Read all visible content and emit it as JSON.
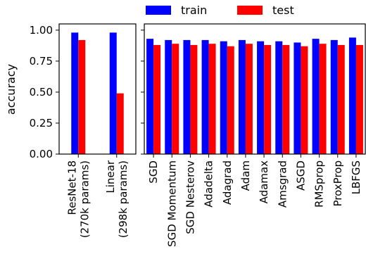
{
  "chart_data": {
    "type": "bar",
    "ylabel": "accuracy",
    "ylim": [
      0,
      1.05
    ],
    "yticks": [
      "0.00",
      "0.25",
      "0.50",
      "0.75",
      "1.00"
    ],
    "legend_position": "top-center",
    "grid": false,
    "colors": {
      "train": "#0000ff",
      "test": "#ff0000"
    },
    "series_names": [
      "train",
      "test"
    ],
    "panels": [
      {
        "categories": [
          [
            "ResNet-18",
            "(270k params)"
          ],
          [
            "Linear",
            "(298k params)"
          ]
        ],
        "series": [
          {
            "name": "train",
            "values": [
              0.98,
              0.98
            ]
          },
          {
            "name": "test",
            "values": [
              0.92,
              0.49
            ]
          }
        ]
      },
      {
        "categories": [
          [
            "SGD"
          ],
          [
            "SGD Momentum"
          ],
          [
            "SGD Nesterov"
          ],
          [
            "Adadelta"
          ],
          [
            "Adagrad"
          ],
          [
            "Adam"
          ],
          [
            "Adamax"
          ],
          [
            "Amsgrad"
          ],
          [
            "ASGD"
          ],
          [
            "RMSprop"
          ],
          [
            "ProxProp"
          ],
          [
            "LBFGS"
          ]
        ],
        "series": [
          {
            "name": "train",
            "values": [
              0.93,
              0.92,
              0.92,
              0.92,
              0.91,
              0.92,
              0.91,
              0.91,
              0.9,
              0.93,
              0.92,
              0.94
            ]
          },
          {
            "name": "test",
            "values": [
              0.88,
              0.89,
              0.88,
              0.89,
              0.87,
              0.89,
              0.88,
              0.88,
              0.87,
              0.89,
              0.88,
              0.88
            ]
          }
        ]
      }
    ]
  }
}
